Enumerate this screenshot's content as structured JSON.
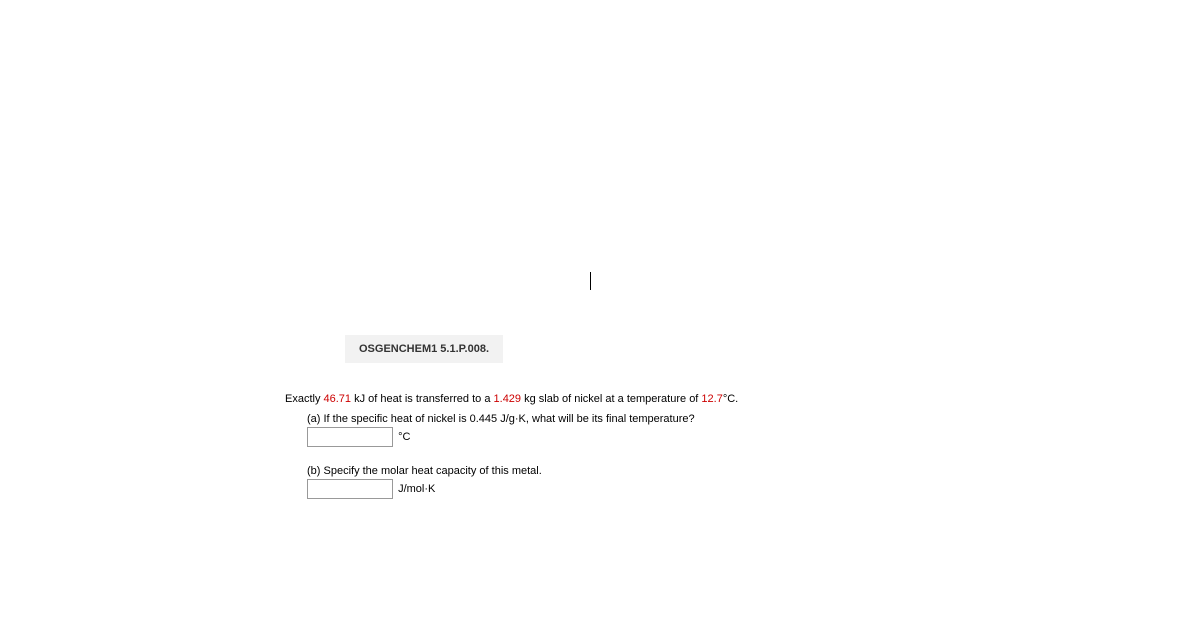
{
  "problem_id": "OSGENCHEM1 5.1.P.008.",
  "stem": {
    "prefix": "Exactly ",
    "heat_value": "46.71",
    "heat_unit": " kJ of heat is transferred to a ",
    "mass_value": "1.429",
    "mass_unit": " kg slab of nickel at a temperature of ",
    "temp_value": "12.7",
    "temp_unit": "°C."
  },
  "part_a": {
    "text": "(a) If the specific heat of nickel is 0.445 J/g·K, what will be its final temperature?",
    "unit": "°C"
  },
  "part_b": {
    "text": "(b) Specify the molar heat capacity of this metal.",
    "unit": "J/mol·K"
  },
  "colors": {
    "highlight": "#cc0000",
    "id_bg": "#f2f2f2",
    "text": "#000000"
  }
}
